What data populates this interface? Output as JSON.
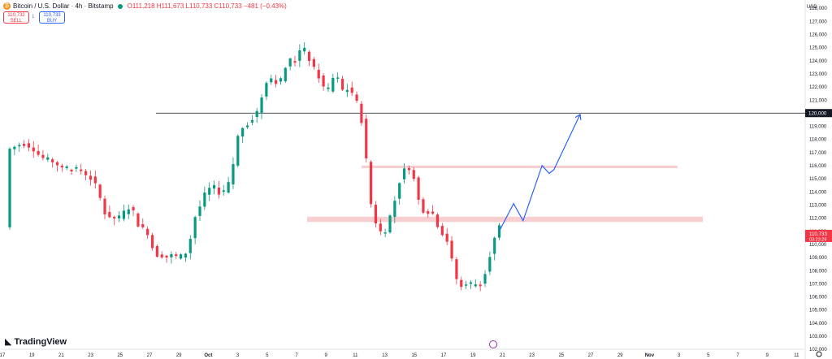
{
  "header": {
    "title": "Bitcoin / U.S. Dollar · 4h · Bitstamp",
    "open": "O111,218",
    "high": "H111,673",
    "low": "L110,733",
    "close": "C110,733",
    "change": "−481 (−0.43%)",
    "coin_icon": "bitcoin-icon",
    "status_color": "#089981"
  },
  "trade": {
    "sell_price": "110,732",
    "sell_label": "SELL",
    "buy_price": "110,733",
    "buy_label": "BUY",
    "spread": "1"
  },
  "brand": {
    "name": "TradingView",
    "icon": "tradingview-logo-icon"
  },
  "currency_label": "USD",
  "colors": {
    "up": "#089981",
    "down": "#f23645",
    "projection": "#2962ff",
    "zone": "#f7c6c9",
    "level": "#131722"
  },
  "chart_data": {
    "type": "candlestick",
    "interval": "4h",
    "y_unit": "USD",
    "ylim": [
      102000,
      128000
    ],
    "y_ticks": [
      "102,000",
      "103,000",
      "104,000",
      "105,000",
      "106,000",
      "107,000",
      "108,000",
      "109,000",
      "110,000",
      "111,000",
      "112,000",
      "113,000",
      "114,000",
      "115,000",
      "116,000",
      "117,000",
      "118,000",
      "119,000",
      "120,000",
      "121,000",
      "122,000",
      "123,000",
      "124,000",
      "125,000",
      "126,000",
      "127,000",
      "128,000"
    ],
    "x_ticks": [
      "17",
      "19",
      "21",
      "23",
      "25",
      "27",
      "29",
      "Oct",
      "3",
      "5",
      "7",
      "9",
      "11",
      "13",
      "15",
      "17",
      "19",
      "21",
      "23",
      "25",
      "27",
      "29",
      "Nov",
      "3",
      "5",
      "7",
      "9",
      "11"
    ],
    "price_path": [
      [
        0,
        117200
      ],
      [
        3,
        117700
      ],
      [
        5,
        117400
      ],
      [
        7,
        116600
      ],
      [
        9,
        116400
      ],
      [
        12,
        115700
      ],
      [
        15,
        115700
      ],
      [
        17,
        115200
      ],
      [
        19,
        114200
      ],
      [
        20,
        112500
      ],
      [
        21,
        112200
      ],
      [
        23,
        111900
      ],
      [
        25,
        112700
      ],
      [
        26,
        112900
      ],
      [
        27,
        111800
      ],
      [
        28,
        111100
      ],
      [
        29,
        111300
      ],
      [
        30,
        110200
      ],
      [
        31,
        109100
      ],
      [
        32,
        109300
      ],
      [
        33,
        108900
      ],
      [
        34,
        109200
      ],
      [
        36,
        109000
      ],
      [
        38,
        109500
      ],
      [
        39,
        111900
      ],
      [
        40,
        112400
      ],
      [
        41,
        113600
      ],
      [
        43,
        114500
      ],
      [
        45,
        113700
      ],
      [
        47,
        115000
      ],
      [
        48,
        117800
      ],
      [
        49,
        118800
      ],
      [
        51,
        119400
      ],
      [
        52,
        119800
      ],
      [
        53,
        120600
      ],
      [
        54,
        122200
      ],
      [
        55,
        122800
      ],
      [
        57,
        122200
      ],
      [
        58,
        123000
      ],
      [
        59,
        124200
      ],
      [
        60,
        123800
      ],
      [
        61,
        124500
      ],
      [
        62,
        125100
      ],
      [
        63,
        124400
      ],
      [
        64,
        123600
      ],
      [
        66,
        122400
      ],
      [
        67,
        121300
      ],
      [
        68,
        122300
      ],
      [
        69,
        123200
      ],
      [
        70,
        121700
      ],
      [
        71,
        121800
      ],
      [
        72,
        121800
      ],
      [
        73,
        121200
      ],
      [
        74,
        120200
      ],
      [
        75,
        118200
      ],
      [
        76,
        113800
      ],
      [
        77,
        112000
      ],
      [
        78,
        111200
      ],
      [
        79,
        110600
      ],
      [
        80,
        111800
      ],
      [
        81,
        112700
      ],
      [
        82,
        114300
      ],
      [
        83,
        115500
      ],
      [
        84,
        115900
      ],
      [
        85,
        115700
      ],
      [
        86,
        113800
      ],
      [
        87,
        112700
      ],
      [
        88,
        112400
      ],
      [
        89,
        112600
      ],
      [
        90,
        111900
      ],
      [
        91,
        110800
      ],
      [
        92,
        110900
      ],
      [
        93,
        109300
      ],
      [
        94,
        108000
      ],
      [
        95,
        106400
      ],
      [
        96,
        107200
      ],
      [
        97,
        106900
      ],
      [
        98,
        107000
      ],
      [
        99,
        106900
      ],
      [
        100,
        107300
      ],
      [
        101,
        108800
      ],
      [
        102,
        109800
      ],
      [
        103,
        111300
      ]
    ],
    "x_window": [
      0,
      103
    ],
    "current_price": "110,733",
    "countdown": "03:23:29",
    "annotations": [
      {
        "type": "horizontal_line",
        "price": 120000,
        "label": "120,000"
      },
      {
        "type": "zone",
        "from": 115800,
        "to": 116000
      },
      {
        "type": "zone",
        "from": 111700,
        "to": 112100
      },
      {
        "type": "projection_path",
        "points": [
          [
            103,
            111000
          ],
          [
            106,
            113100
          ],
          [
            108,
            111800
          ],
          [
            112,
            116000
          ],
          [
            113.5,
            115400
          ],
          [
            114.5,
            115700
          ],
          [
            120,
            119900
          ]
        ]
      }
    ]
  }
}
